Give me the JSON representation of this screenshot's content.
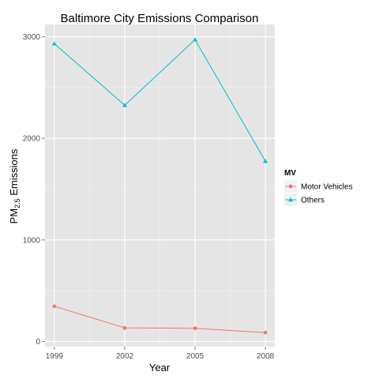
{
  "chart_data": {
    "type": "line",
    "title": "Baltimore City Emissions Comparison",
    "xlabel": "Year",
    "ylabel": {
      "prefix": "PM",
      "sub": "2.5",
      "suffix": " Emissions"
    },
    "x": [
      1999,
      2002,
      2005,
      2008
    ],
    "x_tick_labels": [
      "1999",
      "2002",
      "2005",
      "2008"
    ],
    "y_ticks": [
      0,
      1000,
      2000,
      3000
    ],
    "y_tick_labels": [
      "0",
      "1000",
      "2000",
      "3000"
    ],
    "xlim": [
      1998.6,
      2008.4
    ],
    "ylim": [
      -50,
      3120
    ],
    "grid": true,
    "legend_placement": "right",
    "legend_title": "MV",
    "series": [
      {
        "name": "Motor Vehicles",
        "color": "#F8766D",
        "marker": "circle",
        "values": [
          346.82,
          134.31,
          130.43,
          88.28
        ]
      },
      {
        "name": "Others",
        "color": "#00BFC4",
        "marker": "triangle",
        "values": [
          2931,
          2325,
          2970,
          1775
        ]
      }
    ]
  }
}
